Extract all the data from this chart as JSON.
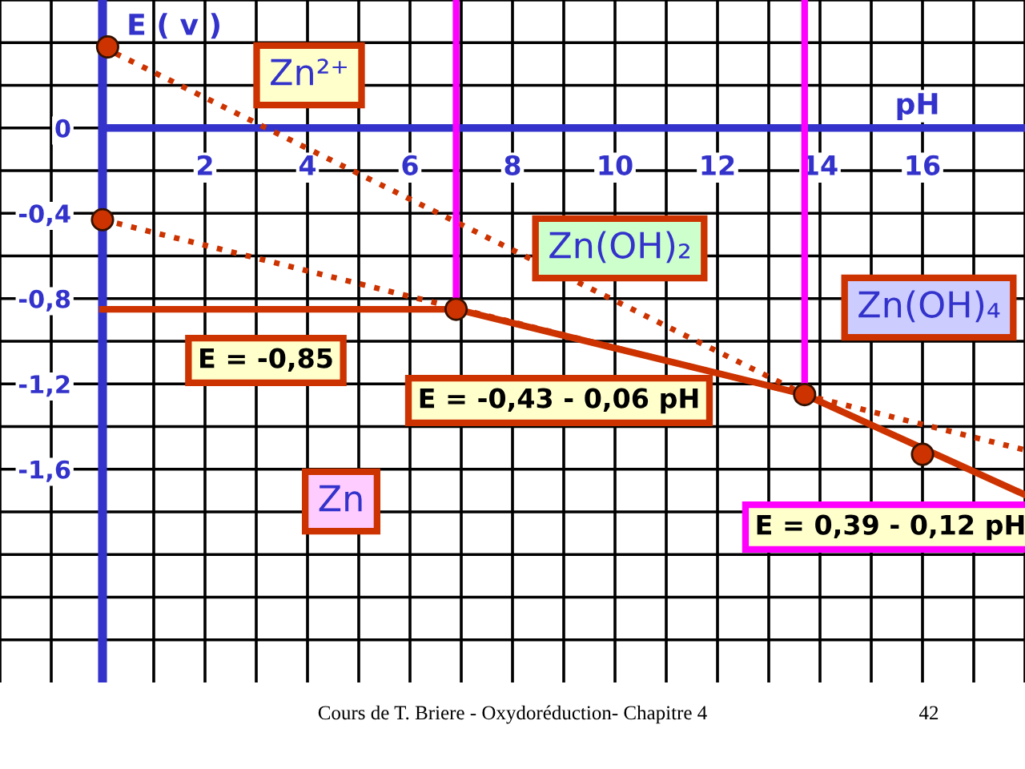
{
  "chart_data": {
    "type": "line",
    "xlabel": "pH",
    "ylabel": "E ( v )",
    "xlim": [
      -2,
      18
    ],
    "ylim": [
      -2.6,
      0.6
    ],
    "xticks": [
      {
        "value": -2,
        "label": null
      },
      {
        "value": -1,
        "label": null
      },
      {
        "value": 1,
        "label": null
      },
      2,
      {
        "value": 3,
        "label": null
      },
      4,
      {
        "value": 5,
        "label": null
      },
      6,
      {
        "value": 7,
        "label": null
      },
      8,
      {
        "value": 9,
        "label": null
      },
      10,
      {
        "value": 11,
        "label": null
      },
      12,
      {
        "value": 13,
        "label": null
      },
      14,
      {
        "value": 15,
        "label": null
      },
      16,
      {
        "value": 17,
        "label": null
      },
      {
        "value": 18,
        "label": null
      }
    ],
    "yticks": [
      {
        "value": 0.6,
        "label": null
      },
      {
        "value": 0.4,
        "label": null
      },
      {
        "value": 0.2,
        "label": null
      },
      0,
      {
        "value": -0.2,
        "label": null
      },
      {
        "value": -0.4,
        "label": "-0,4"
      },
      {
        "value": -0.6,
        "label": null
      },
      {
        "value": -0.8,
        "label": "-0,8"
      },
      {
        "value": -1.0,
        "label": null
      },
      {
        "value": -1.2,
        "label": "-1,2"
      },
      {
        "value": -1.4,
        "label": null
      },
      {
        "value": -1.6,
        "label": "-1,6"
      },
      {
        "value": -1.8,
        "label": null
      },
      {
        "value": -2.0,
        "label": null
      },
      {
        "value": -2.2,
        "label": null
      },
      {
        "value": -2.4,
        "label": null
      }
    ],
    "grid": true,
    "ref_lines": [
      {
        "axis": "x",
        "value": 0,
        "label": null,
        "color": "#3333cc"
      }
    ],
    "series": [
      {
        "color": "#cc3300",
        "line_style": "solid",
        "x": [
          0,
          6.9,
          13.7,
          18
        ],
        "values": [
          -0.85,
          -0.85,
          -1.25,
          -1.72
        ]
      },
      {
        "color": "#cc3300",
        "line_style": "dotted",
        "x": [
          0,
          13.7
        ],
        "values": [
          0.38,
          -1.25
        ]
      },
      {
        "color": "#cc3300",
        "line_style": "dotted",
        "x": [
          0,
          18
        ],
        "values": [
          -0.43,
          -1.51
        ]
      },
      {
        "color": "#ff00ff",
        "line_style": "solid",
        "x": [
          6.9,
          6.9
        ],
        "values": [
          0.6,
          -0.85
        ]
      },
      {
        "color": "#ff00ff",
        "line_style": "solid",
        "x": [
          13.7,
          13.7
        ],
        "values": [
          0.6,
          -1.25
        ]
      },
      {
        "type": "scatter",
        "color": "#cc3300",
        "marker": "circle",
        "x": [
          0.1,
          0,
          6.9,
          13.7,
          16
        ],
        "values": [
          0.38,
          -0.43,
          -0.85,
          -1.25,
          -1.53
        ]
      }
    ],
    "annotations": [
      "Zn²⁺",
      "Zn(OH)₂",
      "Zn(OH)₄",
      "Zn",
      "E = -0,85",
      "E = -0,43 - 0,06 pH",
      "E = 0,39 - 0,12 pH",
      "Cours de T. Briere - Oxydoréduction- Chapitre 4",
      "42"
    ]
  }
}
